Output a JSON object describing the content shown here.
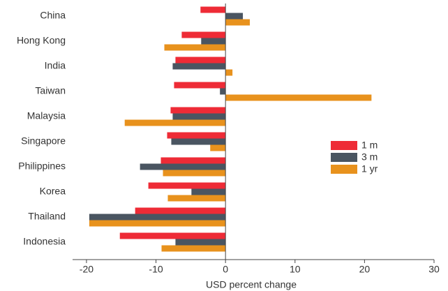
{
  "chart_data": {
    "type": "hbar",
    "categories": [
      "China",
      "Hong Kong",
      "India",
      "Taiwan",
      "Malaysia",
      "Singapore",
      "Philippines",
      "Korea",
      "Thailand",
      "Indonesia"
    ],
    "series": [
      {
        "name": "1 m",
        "color": "#ee2b36",
        "values": [
          -3.6,
          -6.3,
          -7.2,
          -7.4,
          -7.9,
          -8.4,
          -9.3,
          -11.1,
          -13.0,
          -15.2
        ]
      },
      {
        "name": "3 m",
        "color": "#4a5561",
        "values": [
          2.5,
          -3.5,
          -7.6,
          -0.8,
          -7.6,
          -7.8,
          -12.3,
          -4.9,
          -19.6,
          -7.2
        ]
      },
      {
        "name": "1 yr",
        "color": "#e8921d",
        "values": [
          3.5,
          -8.8,
          1.0,
          21.0,
          -14.5,
          -2.2,
          -9.0,
          -8.3,
          -19.6,
          -9.2
        ]
      }
    ],
    "xlabel": "USD percent change",
    "xlim": [
      -22,
      30
    ],
    "xticks": [
      -20,
      -10,
      0,
      10,
      20,
      30
    ]
  }
}
